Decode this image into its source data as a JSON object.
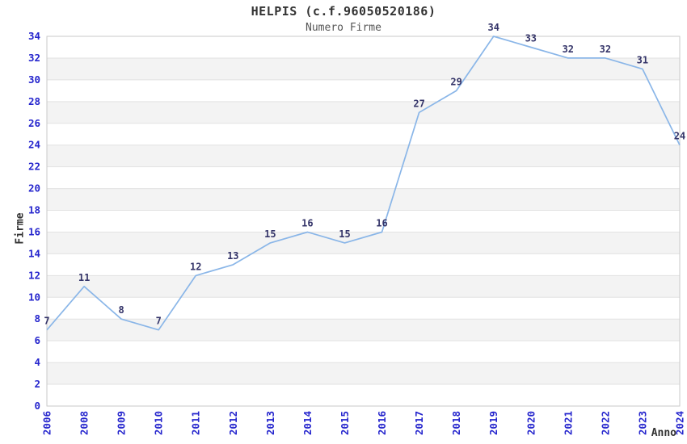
{
  "chart_data": {
    "type": "line",
    "title": "HELPIS (c.f.96050520186)",
    "subtitle": "Numero Firme",
    "xlabel": "Anno",
    "ylabel": "Firme",
    "categories": [
      "2006",
      "2008",
      "2009",
      "2010",
      "2011",
      "2012",
      "2013",
      "2014",
      "2015",
      "2016",
      "2017",
      "2018",
      "2019",
      "2020",
      "2021",
      "2022",
      "2023",
      "2024"
    ],
    "series": [
      {
        "name": "Numero Firme",
        "values": [
          7,
          11,
          8,
          7,
          12,
          13,
          15,
          16,
          15,
          16,
          27,
          29,
          34,
          33,
          32,
          32,
          31,
          24
        ]
      }
    ],
    "point_labels": [
      "7",
      "11",
      "8",
      "7",
      "12",
      "13",
      "15",
      "16",
      "15",
      "16",
      "27",
      "29",
      "34",
      "33",
      "32",
      "32",
      "31",
      "24"
    ],
    "ylim": [
      0,
      34
    ],
    "ytick_step": 2,
    "yticks": [
      "0",
      "2",
      "4",
      "6",
      "8",
      "10",
      "12",
      "14",
      "16",
      "18",
      "20",
      "22",
      "24",
      "26",
      "28",
      "30",
      "32",
      "34"
    ],
    "grid": true,
    "banded_background": true,
    "legend": "none",
    "colors": {
      "line": "#8ab6e8",
      "tick_label": "#2525cd",
      "point_label": "#343469",
      "gridline": "#e2e2e2",
      "band_fill": "#f3f3f3",
      "plot_border": "#c9c9c9",
      "title": "#333333",
      "subtitle": "#555555",
      "plot_background": "#ffffff"
    }
  }
}
